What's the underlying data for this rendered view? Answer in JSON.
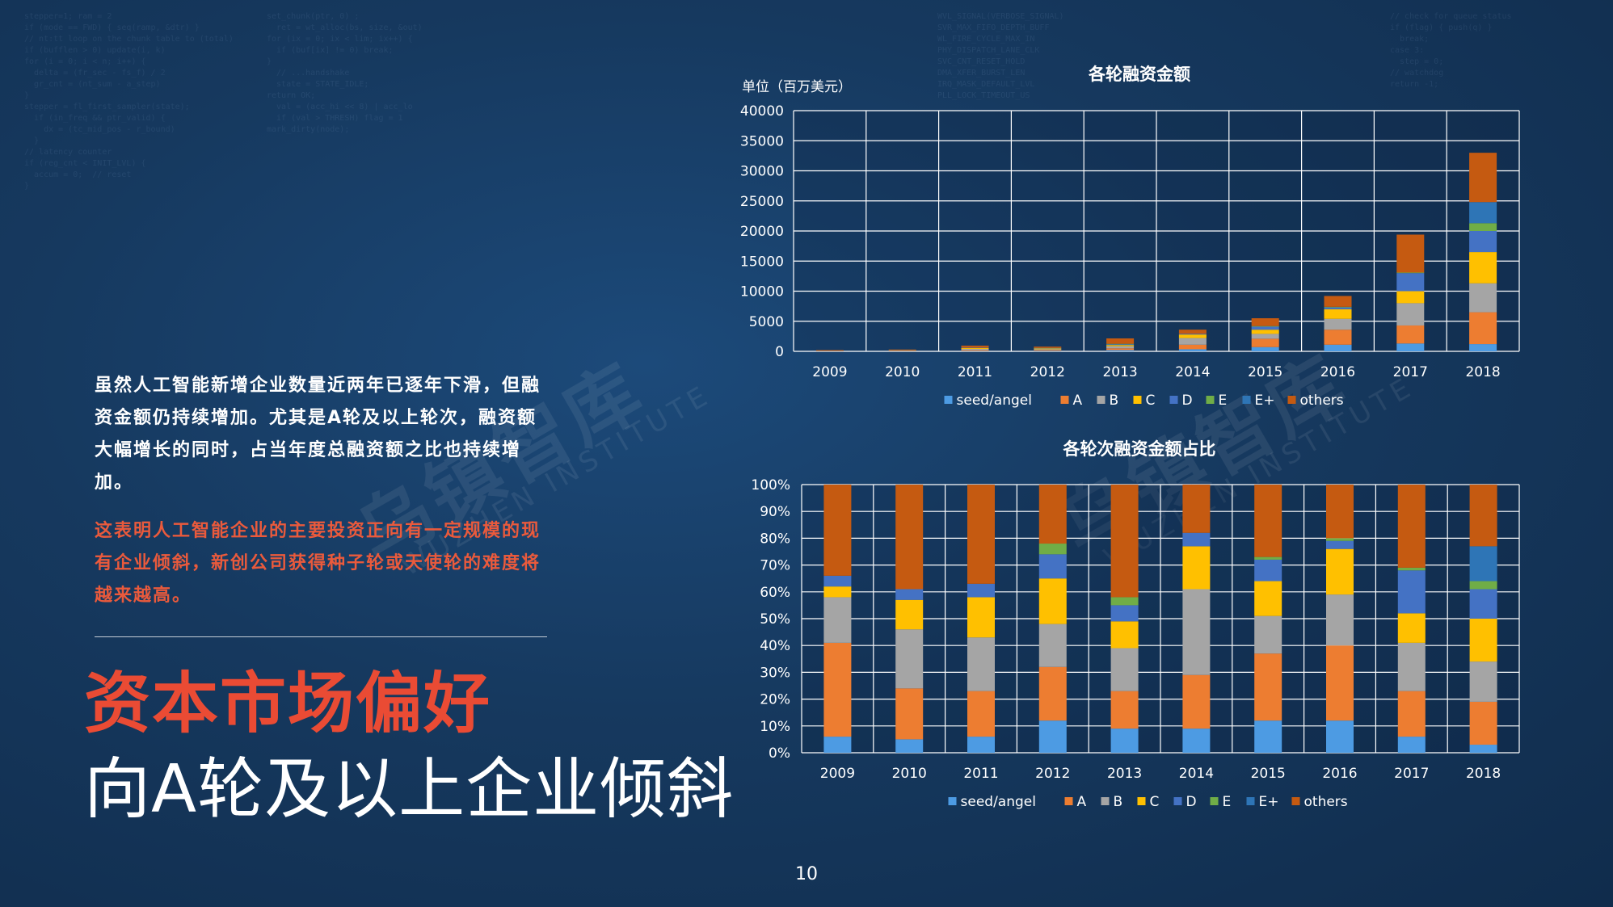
{
  "text": {
    "paragraph": "虽然人工智能新增企业数量近两年已逐年下滑，但融资金额仍持续增加。尤其是A轮及以上轮次，融资额大幅增长的同时，占当年度总融资额之比也持续增加。",
    "paragraph_accent": "这表明人工智能企业的主要投资正向有一定规模的现有企业倾斜，新创公司获得种子轮或天使轮的难度将越来越高。",
    "headline_1": "资本市场偏好",
    "headline_2": "向A轮及以上企业倾斜",
    "page_number": "10",
    "watermark_cn": "乌镇智库",
    "watermark_en": "WUZHEN INSTITUTE"
  },
  "colors": {
    "seed/angel": "#4d9be3",
    "A": "#ed7d31",
    "B": "#a5a5a5",
    "C": "#ffc000",
    "D": "#4472c4",
    "E": "#70ad47",
    "E+": "#2e75b6",
    "others": "#c55a11"
  },
  "chart_data": [
    {
      "type": "bar",
      "stacked": true,
      "title": "各轮融资金额",
      "unit_label": "单位（百万美元）",
      "categories": [
        "2009",
        "2010",
        "2011",
        "2012",
        "2013",
        "2014",
        "2015",
        "2016",
        "2017",
        "2018"
      ],
      "ylim": [
        0,
        40000
      ],
      "yticks": [
        "0",
        "5000",
        "10000",
        "15000",
        "20000",
        "25000",
        "30000",
        "35000",
        "40000"
      ],
      "grid": true,
      "legend_position": "bottom",
      "series": [
        {
          "name": "seed/angel",
          "values": [
            10,
            20,
            60,
            80,
            200,
            350,
            700,
            1100,
            1300,
            1200
          ]
        },
        {
          "name": "A",
          "values": [
            70,
            60,
            150,
            150,
            300,
            750,
            1400,
            2500,
            3000,
            5300
          ]
        },
        {
          "name": "B",
          "values": [
            30,
            60,
            200,
            120,
            350,
            1100,
            800,
            1800,
            3700,
            4800
          ]
        },
        {
          "name": "C",
          "values": [
            10,
            30,
            150,
            130,
            200,
            600,
            700,
            1600,
            2000,
            5200
          ]
        },
        {
          "name": "D",
          "values": [
            5,
            20,
            50,
            50,
            120,
            120,
            500,
            300,
            3000,
            3500
          ]
        },
        {
          "name": "E",
          "values": [
            0,
            0,
            0,
            30,
            80,
            0,
            100,
            100,
            100,
            1300
          ]
        },
        {
          "name": "E+",
          "values": [
            0,
            0,
            0,
            0,
            0,
            0,
            0,
            0,
            0,
            3500
          ]
        },
        {
          "name": "others",
          "values": [
            75,
            110,
            340,
            220,
            900,
            680,
            1300,
            1800,
            6300,
            8200
          ]
        }
      ]
    },
    {
      "type": "bar",
      "stacked": true,
      "percent": true,
      "title": "各轮次融资金额占比",
      "categories": [
        "2009",
        "2010",
        "2011",
        "2012",
        "2013",
        "2014",
        "2015",
        "2016",
        "2017",
        "2018"
      ],
      "ylim": [
        0,
        100
      ],
      "yticks": [
        "0%",
        "10%",
        "20%",
        "30%",
        "40%",
        "50%",
        "60%",
        "70%",
        "80%",
        "90%",
        "100%"
      ],
      "grid": true,
      "legend_position": "bottom",
      "series": [
        {
          "name": "seed/angel",
          "values": [
            6,
            5,
            6,
            12,
            9,
            9,
            12,
            12,
            6,
            3
          ]
        },
        {
          "name": "A",
          "values": [
            35,
            19,
            17,
            20,
            14,
            20,
            25,
            28,
            17,
            16
          ]
        },
        {
          "name": "B",
          "values": [
            17,
            22,
            20,
            16,
            16,
            32,
            14,
            19,
            18,
            15
          ]
        },
        {
          "name": "C",
          "values": [
            4,
            11,
            15,
            17,
            10,
            16,
            13,
            17,
            11,
            16
          ]
        },
        {
          "name": "D",
          "values": [
            4,
            4,
            5,
            9,
            6,
            5,
            8,
            3,
            16,
            11
          ]
        },
        {
          "name": "E",
          "values": [
            0,
            0,
            0,
            4,
            3,
            0,
            1,
            1,
            1,
            3
          ]
        },
        {
          "name": "E+",
          "values": [
            0,
            0,
            0,
            0,
            0,
            0,
            0,
            0,
            0,
            13
          ]
        },
        {
          "name": "others",
          "values": [
            34,
            39,
            37,
            22,
            42,
            18,
            27,
            20,
            31,
            23
          ]
        }
      ]
    }
  ]
}
